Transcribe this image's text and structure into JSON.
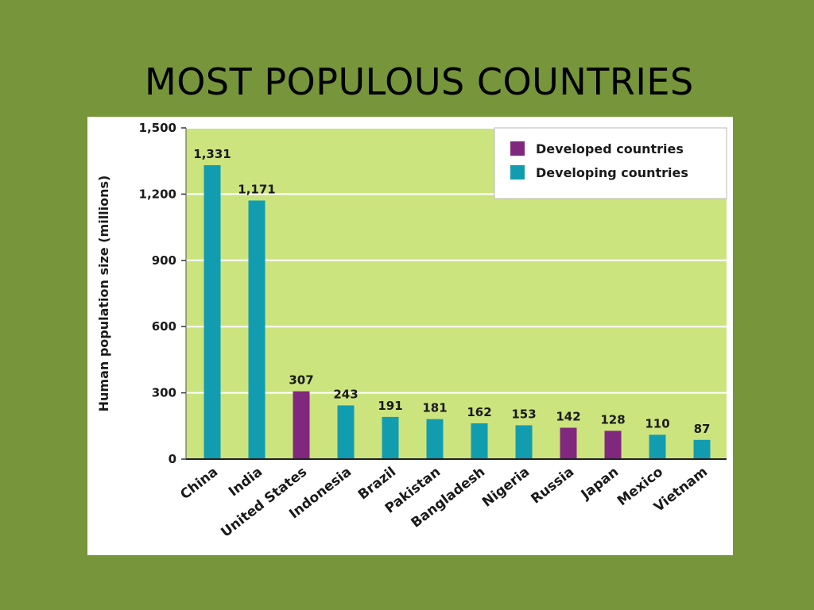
{
  "slide": {
    "title": "MOST  POPULOUS  COUNTRIES"
  },
  "colors": {
    "page_background": "#77953a",
    "plot_background": "#cce47e",
    "developed": "#80287e",
    "developing": "#129cb0",
    "gridline": "#ffffff"
  },
  "chart_data": {
    "type": "bar",
    "title": "",
    "xlabel": "",
    "ylabel": "Human population size (millions)",
    "ylim": [
      0,
      1500
    ],
    "yticks": [
      0,
      300,
      600,
      900,
      1200,
      1500
    ],
    "ytick_labels": [
      "0",
      "300",
      "600",
      "900",
      "1,200",
      "1,500"
    ],
    "grid": true,
    "legend_position": "top-right",
    "legend": [
      {
        "label": "Developed countries",
        "group": "developed"
      },
      {
        "label": "Developing countries",
        "group": "developing"
      }
    ],
    "categories": [
      "China",
      "India",
      "United States",
      "Indonesia",
      "Brazil",
      "Pakistan",
      "Bangladesh",
      "Nigeria",
      "Russia",
      "Japan",
      "Mexico",
      "Vietnam"
    ],
    "values": [
      1331,
      1171,
      307,
      243,
      191,
      181,
      162,
      153,
      142,
      128,
      110,
      87
    ],
    "value_labels": [
      "1,331",
      "1,171",
      "307",
      "243",
      "191",
      "181",
      "162",
      "153",
      "142",
      "128",
      "110",
      "87"
    ],
    "groups": [
      "developing",
      "developing",
      "developed",
      "developing",
      "developing",
      "developing",
      "developing",
      "developing",
      "developed",
      "developed",
      "developing",
      "developing"
    ]
  }
}
